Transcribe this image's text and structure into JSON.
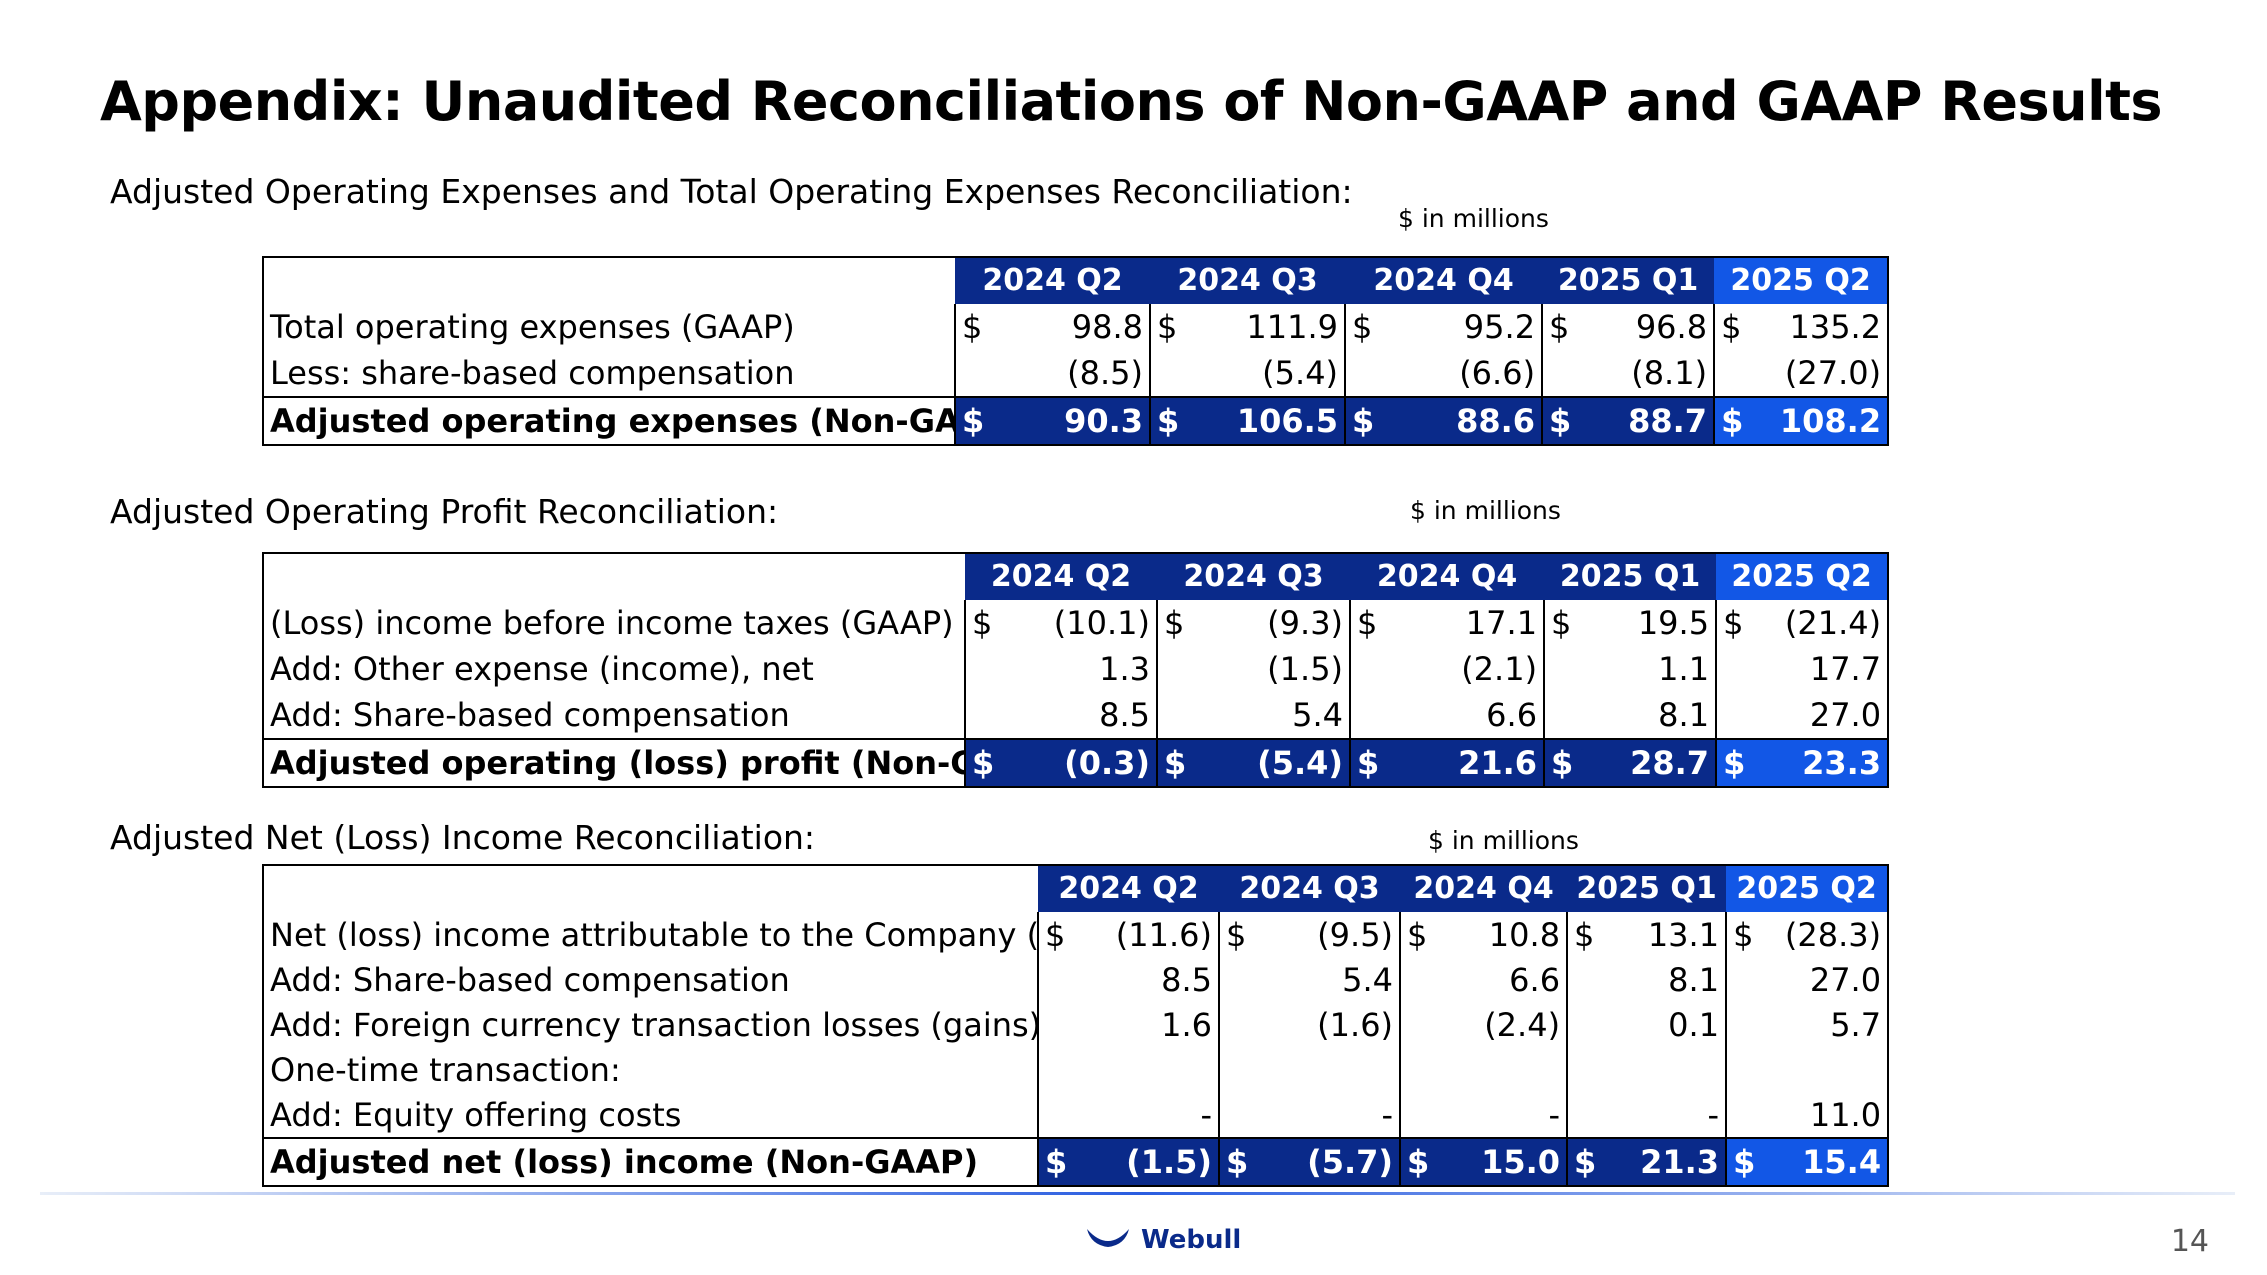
{
  "title": "Appendix: Unaudited Reconciliations of Non-GAAP and GAAP Results",
  "units": "$ in millions",
  "page_number": "14",
  "brand": "Webull",
  "quarters": [
    "2024 Q2",
    "2024 Q3",
    "2024 Q4",
    "2025 Q1",
    "2025 Q2"
  ],
  "table1": {
    "label": "Adjusted Operating Expenses and Total Operating Expenses Reconciliation:",
    "rows": [
      {
        "label": "Total operating expenses (GAAP)",
        "dollar": "$",
        "values": [
          "98.8",
          "111.9",
          "95.2",
          "96.8",
          "135.2"
        ]
      },
      {
        "label": "Less: share-based compensation",
        "dollar": "",
        "values": [
          "(8.5)",
          "(5.4)",
          "(6.6)",
          "(8.1)",
          "(27.0)"
        ]
      }
    ],
    "total": {
      "label": "Adjusted operating expenses (Non-GAAP)",
      "dollar": "$",
      "values": [
        "90.3",
        "106.5",
        "88.6",
        "88.7",
        "108.2"
      ]
    }
  },
  "table2": {
    "label": "Adjusted Operating Profit Reconciliation:",
    "rows": [
      {
        "label": "(Loss) income before income taxes (GAAP)",
        "dollar": "$",
        "values": [
          "(10.1)",
          "(9.3)",
          "17.1",
          "19.5",
          "(21.4)"
        ]
      },
      {
        "label": "Add: Other expense (income), net",
        "dollar": "",
        "values": [
          "1.3",
          "(1.5)",
          "(2.1)",
          "1.1",
          "17.7"
        ]
      },
      {
        "label": "Add: Share-based compensation",
        "dollar": "",
        "values": [
          "8.5",
          "5.4",
          "6.6",
          "8.1",
          "27.0"
        ]
      }
    ],
    "total": {
      "label": "Adjusted operating (loss) profit (Non-GAAP)",
      "dollar": "$",
      "values": [
        "(0.3)",
        "(5.4)",
        "21.6",
        "28.7",
        "23.3"
      ]
    }
  },
  "table3": {
    "label": "Adjusted Net (Loss) Income Reconciliation:",
    "rows": [
      {
        "label": "Net (loss) income attributable to the Company (GAAP)",
        "dollar": "$",
        "values": [
          "(11.6)",
          "(9.5)",
          "10.8",
          "13.1",
          "(28.3)"
        ]
      },
      {
        "label": "Add: Share-based compensation",
        "dollar": "",
        "values": [
          "8.5",
          "5.4",
          "6.6",
          "8.1",
          "27.0"
        ]
      },
      {
        "label": "Add: Foreign currency transaction losses (gains)",
        "dollar": "",
        "values": [
          "1.6",
          "(1.6)",
          "(2.4)",
          "0.1",
          "5.7"
        ]
      },
      {
        "label": "One-time transaction:",
        "dollar": "",
        "values": [
          "",
          "",
          "",
          "",
          ""
        ]
      },
      {
        "label": "Add:  Equity offering costs",
        "dollar": "",
        "values": [
          "-",
          "-",
          "-",
          "-",
          "11.0"
        ]
      }
    ],
    "total": {
      "label": "Adjusted net (loss) income (Non-GAAP)",
      "dollar": "$",
      "values": [
        "(1.5)",
        "(5.7)",
        "15.0",
        "21.3",
        "15.4"
      ]
    }
  }
}
